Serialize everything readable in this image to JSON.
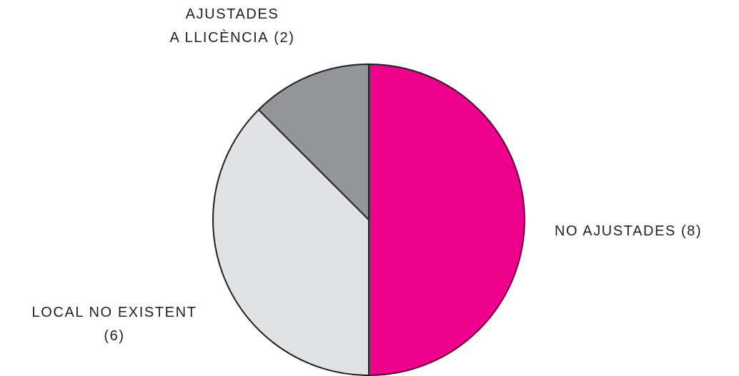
{
  "chart_data": {
    "type": "pie",
    "categories": [
      "NO AJUSTADES",
      "LOCAL NO EXISTENT",
      "AJUSTADES\nA LLICÈNCIA"
    ],
    "values": [
      8,
      6,
      2
    ],
    "value_labels": [
      "(8)",
      "(6)",
      "(2)"
    ],
    "colors": [
      "#ec008c",
      "#e1e2e4",
      "#939598"
    ]
  }
}
